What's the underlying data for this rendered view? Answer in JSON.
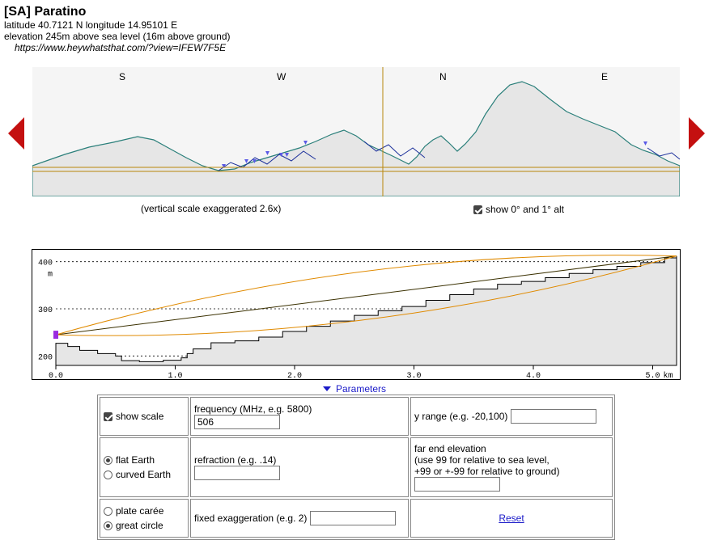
{
  "header": {
    "title": "[SA] Paratino",
    "coords": "latitude 40.7121 N longitude 14.95101 E",
    "elevation": "elevation 245m above sea level (16m above ground)",
    "url": "https://www.heywhatsthat.com/?view=IFEW7F5E"
  },
  "panorama": {
    "compass": [
      "S",
      "W",
      "N",
      "E"
    ],
    "caption": "(vertical scale exaggerated 2.6x)",
    "show_alt_label": "show 0° and 1° alt",
    "show_alt_checked": true
  },
  "chart_data": {
    "type": "line",
    "x_ticks": [
      "0.0",
      "1.0",
      "2.0",
      "3.0",
      "4.0",
      "5.0"
    ],
    "x_unit": "km",
    "y_ticks": [
      "200",
      "300",
      "400"
    ],
    "y_unit": "m",
    "xlim": [
      0,
      5.2
    ],
    "ylim": [
      180,
      420
    ],
    "observer_elevation": 245,
    "far_end_elevation": 412,
    "terrain": {
      "x": [
        0.0,
        0.1,
        0.2,
        0.35,
        0.5,
        0.55,
        0.7,
        0.9,
        1.05,
        1.1,
        1.15,
        1.3,
        1.5,
        1.7,
        1.9,
        2.1,
        2.3,
        2.5,
        2.7,
        2.9,
        3.1,
        3.3,
        3.5,
        3.7,
        3.9,
        4.1,
        4.3,
        4.5,
        4.7,
        4.9,
        5.1,
        5.2
      ],
      "y": [
        227,
        220,
        212,
        205,
        200,
        190,
        188,
        191,
        196,
        205,
        215,
        228,
        232,
        240,
        252,
        263,
        274,
        286,
        296,
        305,
        318,
        330,
        342,
        352,
        358,
        366,
        375,
        383,
        390,
        398,
        408,
        412
      ]
    },
    "grid": true
  },
  "parameters_toggle": "Parameters",
  "params": {
    "show_scale_label": "show scale",
    "show_scale_checked": true,
    "frequency_label": "frequency (MHz, e.g. 5800)",
    "frequency_value": "506",
    "yrange_label": "y range (e.g. -20,100)",
    "yrange_value": "",
    "flat_earth_label": "flat Earth",
    "curved_earth_label": "curved Earth",
    "earth_model": "flat",
    "refraction_label": "refraction (e.g. .14)",
    "refraction_value": "",
    "far_end_title": "far end elevation",
    "far_end_line1": "(use 99 for relative to sea level,",
    "far_end_line2": "+99 or +-99 for relative to ground)",
    "far_end_value": "",
    "plate_caree_label": "plate carée",
    "great_circle_label": "great circle",
    "projection": "great-circle",
    "fixed_exag_label": "fixed exaggeration (e.g. 2)",
    "fixed_exag_value": "",
    "reset_label": "Reset"
  },
  "colors": {
    "terrain_fill": "#e6e6e6",
    "ridge_line": "#2a7f7a",
    "horizon_line": "#b8860b",
    "fresnel": "#e08a00",
    "marker": "#9a2be0",
    "arrow": "#c41010",
    "link": "#1a1ac8"
  }
}
